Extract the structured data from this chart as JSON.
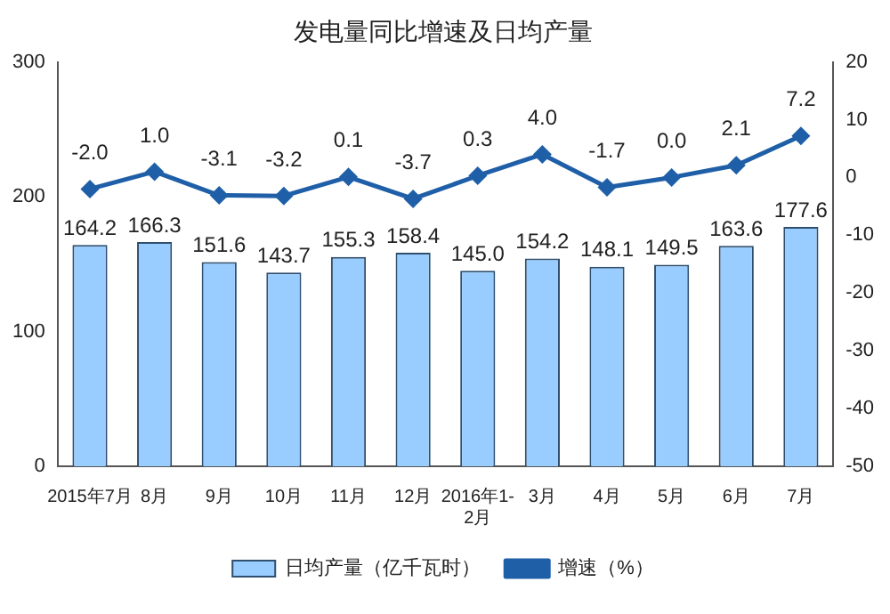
{
  "chart_data": {
    "type": "bar",
    "title": "发电量同比增速及日均产量",
    "categories": [
      "2015年7月",
      "8月",
      "9月",
      "10月",
      "11月",
      "12月",
      "2016年1-\n2月",
      "3月",
      "4月",
      "5月",
      "6月",
      "7月"
    ],
    "series": [
      {
        "name": "日均产量（亿千瓦时）",
        "color": "#99ccff",
        "values": [
          164.2,
          166.3,
          151.6,
          143.7,
          155.3,
          158.4,
          145.0,
          154.2,
          148.1,
          149.5,
          163.6,
          177.6
        ],
        "value_labels": [
          "164.2",
          "166.3",
          "151.6",
          "143.7",
          "155.3",
          "158.4",
          "145.0",
          "154.2",
          "148.1",
          "149.5",
          "163.6",
          "177.6"
        ]
      },
      {
        "name": "增速（%）",
        "type": "line",
        "axis": "y2",
        "color": "#1f5fa8",
        "values": [
          -2.0,
          1.0,
          -3.1,
          -3.2,
          0.1,
          -3.7,
          0.3,
          4.0,
          -1.7,
          0.0,
          2.1,
          7.2
        ],
        "value_labels": [
          "-2.0",
          "1.0",
          "-3.1",
          "-3.2",
          "0.1",
          "-3.7",
          "0.3",
          "4.0",
          "-1.7",
          "0.0",
          "2.1",
          "7.2"
        ]
      }
    ],
    "ylim": [
      0,
      300
    ],
    "yticks": [
      0,
      100,
      200,
      300
    ],
    "y2lim": [
      -50,
      20
    ],
    "y2ticks": [
      -50,
      -40,
      -30,
      -20,
      -10,
      0,
      10,
      20
    ],
    "grid": false,
    "legend": "bottom",
    "marker": "diamond",
    "line_style": "solid"
  }
}
